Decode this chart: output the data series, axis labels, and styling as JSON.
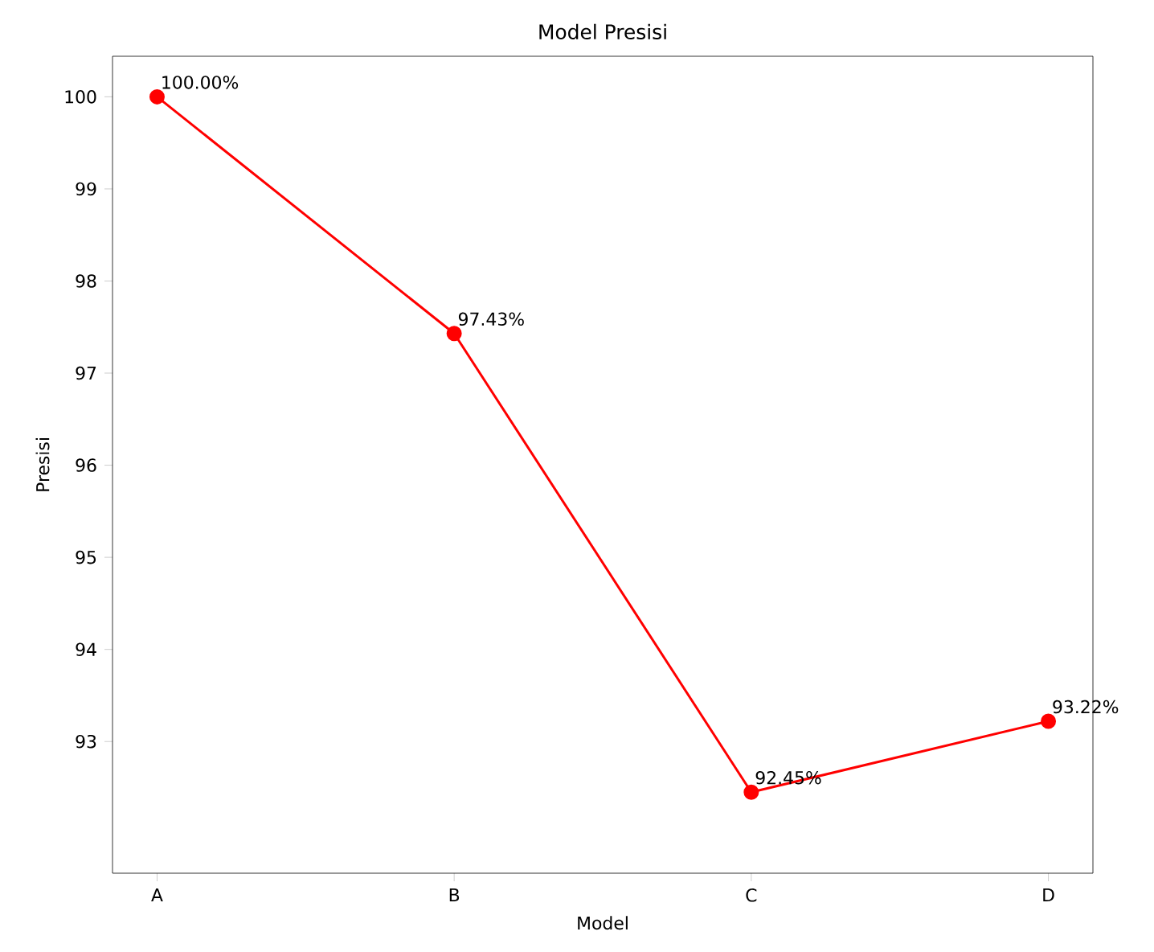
{
  "chart_data": {
    "type": "line",
    "title": "Model Presisi",
    "xlabel": "Model",
    "ylabel": "Presisi",
    "categories": [
      "A",
      "B",
      "C",
      "D"
    ],
    "values": [
      100,
      97.43,
      92.45,
      93.22
    ],
    "value_labels": [
      "100.00%",
      "97.43%",
      "92.45%",
      "93.22%"
    ],
    "color": "#ff0000",
    "marker": "circle",
    "line_style": "solid",
    "ylim": [
      91.57,
      100.44
    ],
    "yticks": [
      93,
      94,
      95,
      96,
      97,
      98,
      99,
      100
    ],
    "grid": false,
    "legend": false
  }
}
